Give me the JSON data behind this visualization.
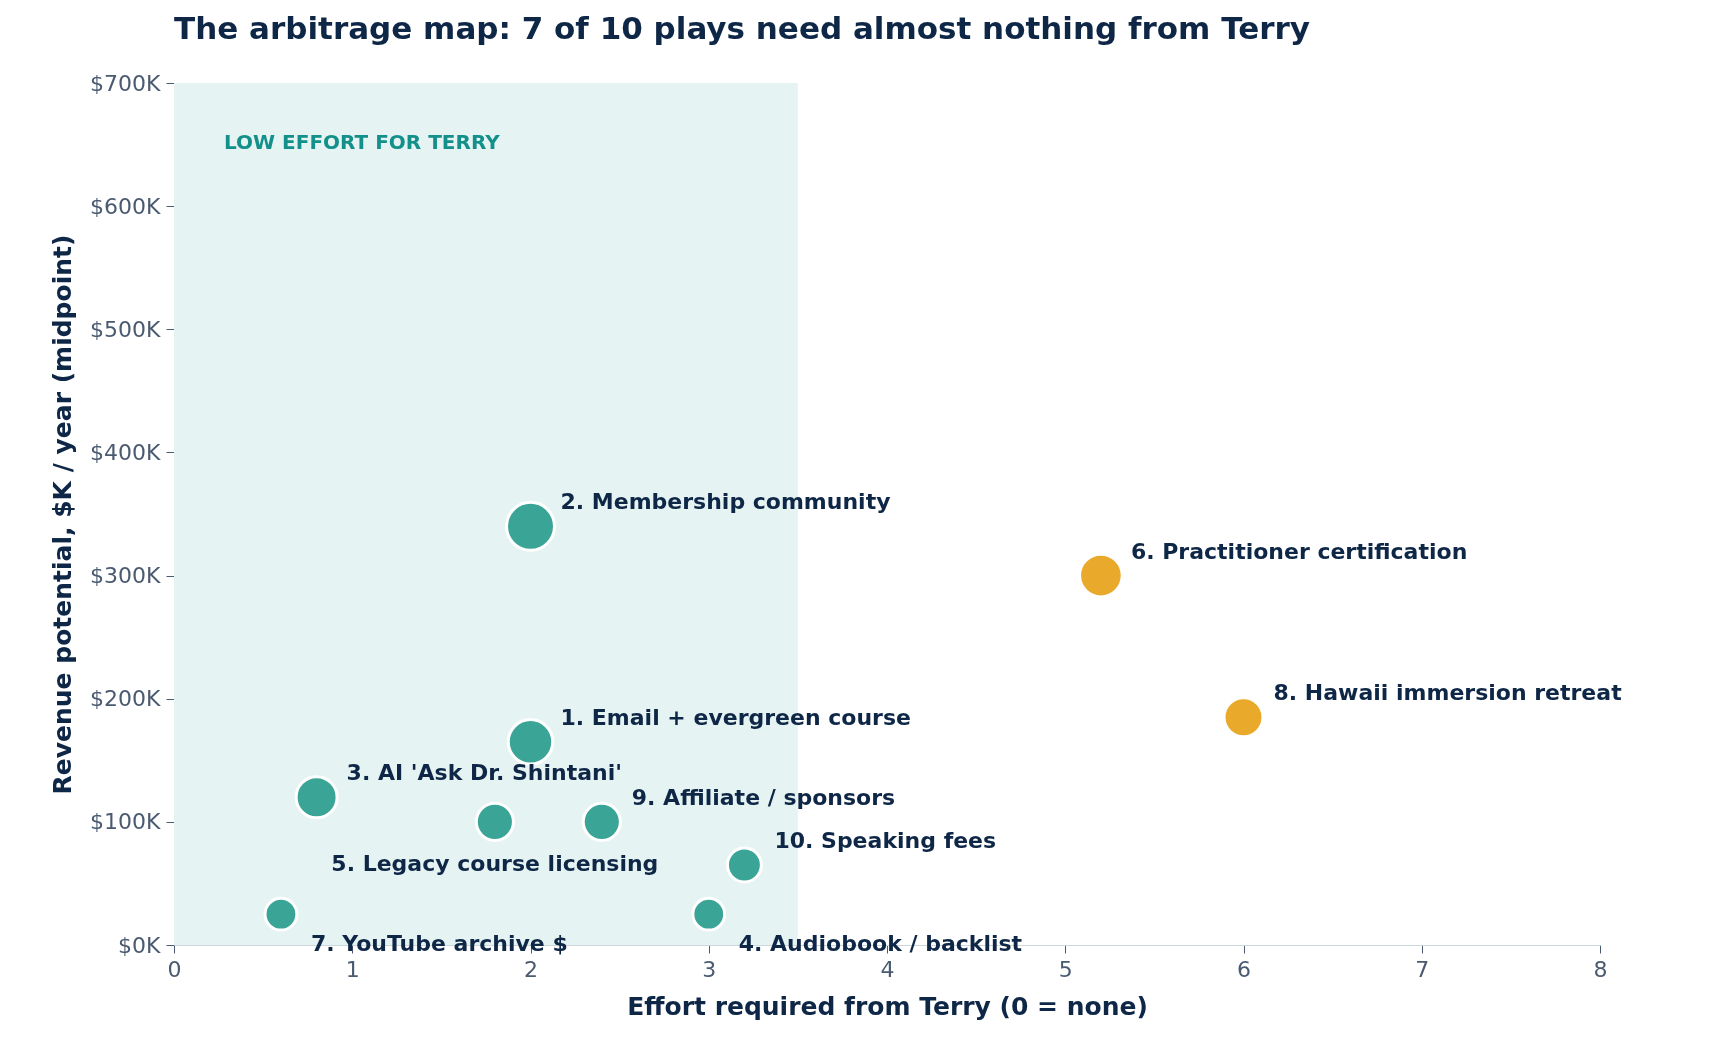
{
  "chart_data": {
    "type": "bubble",
    "title": "The arbitrage map: 7 of 10 plays need almost nothing from Terry",
    "xlabel": "Effort required from Terry (0 = none)",
    "ylabel": "Revenue potential, $K / year (midpoint)",
    "x": [
      2,
      2,
      0.8,
      3,
      1.8,
      5.2,
      0.6,
      6,
      2.4,
      3.2
    ],
    "values": [
      165,
      340,
      120,
      25,
      100,
      300,
      25,
      185,
      100,
      65
    ],
    "sizes": [
      0.86,
      1,
      0.73,
      0.44,
      0.6,
      0.79,
      0.44,
      0.66,
      0.6,
      0.5
    ],
    "colors": [
      "#3aa597",
      "#3aa597",
      "#3aa597",
      "#3aa597",
      "#3aa597",
      "#e9aa2b",
      "#3aa597",
      "#e9aa2b",
      "#3aa597",
      "#3aa597"
    ],
    "annotations": [
      {
        "text": "1. Email + evergreen course",
        "x": 2,
        "y": 165
      },
      {
        "text": "2. Membership community",
        "x": 2,
        "y": 340
      },
      {
        "text": "3. AI 'Ask Dr. Shintani'",
        "x": 0.8,
        "y": 120
      },
      {
        "text": "4. Audiobook / backlist",
        "x": 3,
        "y": 25
      },
      {
        "text": "5. Legacy course licensing",
        "x": 1.8,
        "y": 100
      },
      {
        "text": "6. Practitioner certification",
        "x": 5.2,
        "y": 300
      },
      {
        "text": "7. YouTube archive $",
        "x": 0.6,
        "y": 25
      },
      {
        "text": "8. Hawaii immersion retreat",
        "x": 6,
        "y": 185
      },
      {
        "text": "9. Affiliate / sponsors",
        "x": 2.4,
        "y": 100
      },
      {
        "text": "10. Speaking fees",
        "x": 3.2,
        "y": 65
      }
    ],
    "bands": [
      {
        "axis": "x",
        "from": 0,
        "to": 3.5,
        "label": "LOW EFFORT FOR TERRY",
        "color": "#e6f3f3"
      }
    ],
    "xlim": [
      0,
      8
    ],
    "xticks": [
      0,
      1,
      2,
      3,
      4,
      5,
      6,
      7,
      8
    ],
    "ylim": [
      0,
      700
    ],
    "yticks": [
      {
        "value": 0,
        "label": "$0K"
      },
      {
        "value": 100,
        "label": "$100K"
      },
      {
        "value": 200,
        "label": "$200K"
      },
      {
        "value": 300,
        "label": "$300K"
      },
      {
        "value": 400,
        "label": "$400K"
      },
      {
        "value": 500,
        "label": "$500K"
      },
      {
        "value": 600,
        "label": "$600K"
      },
      {
        "value": 700,
        "label": "$700K"
      }
    ],
    "grid": false,
    "legend": false
  }
}
